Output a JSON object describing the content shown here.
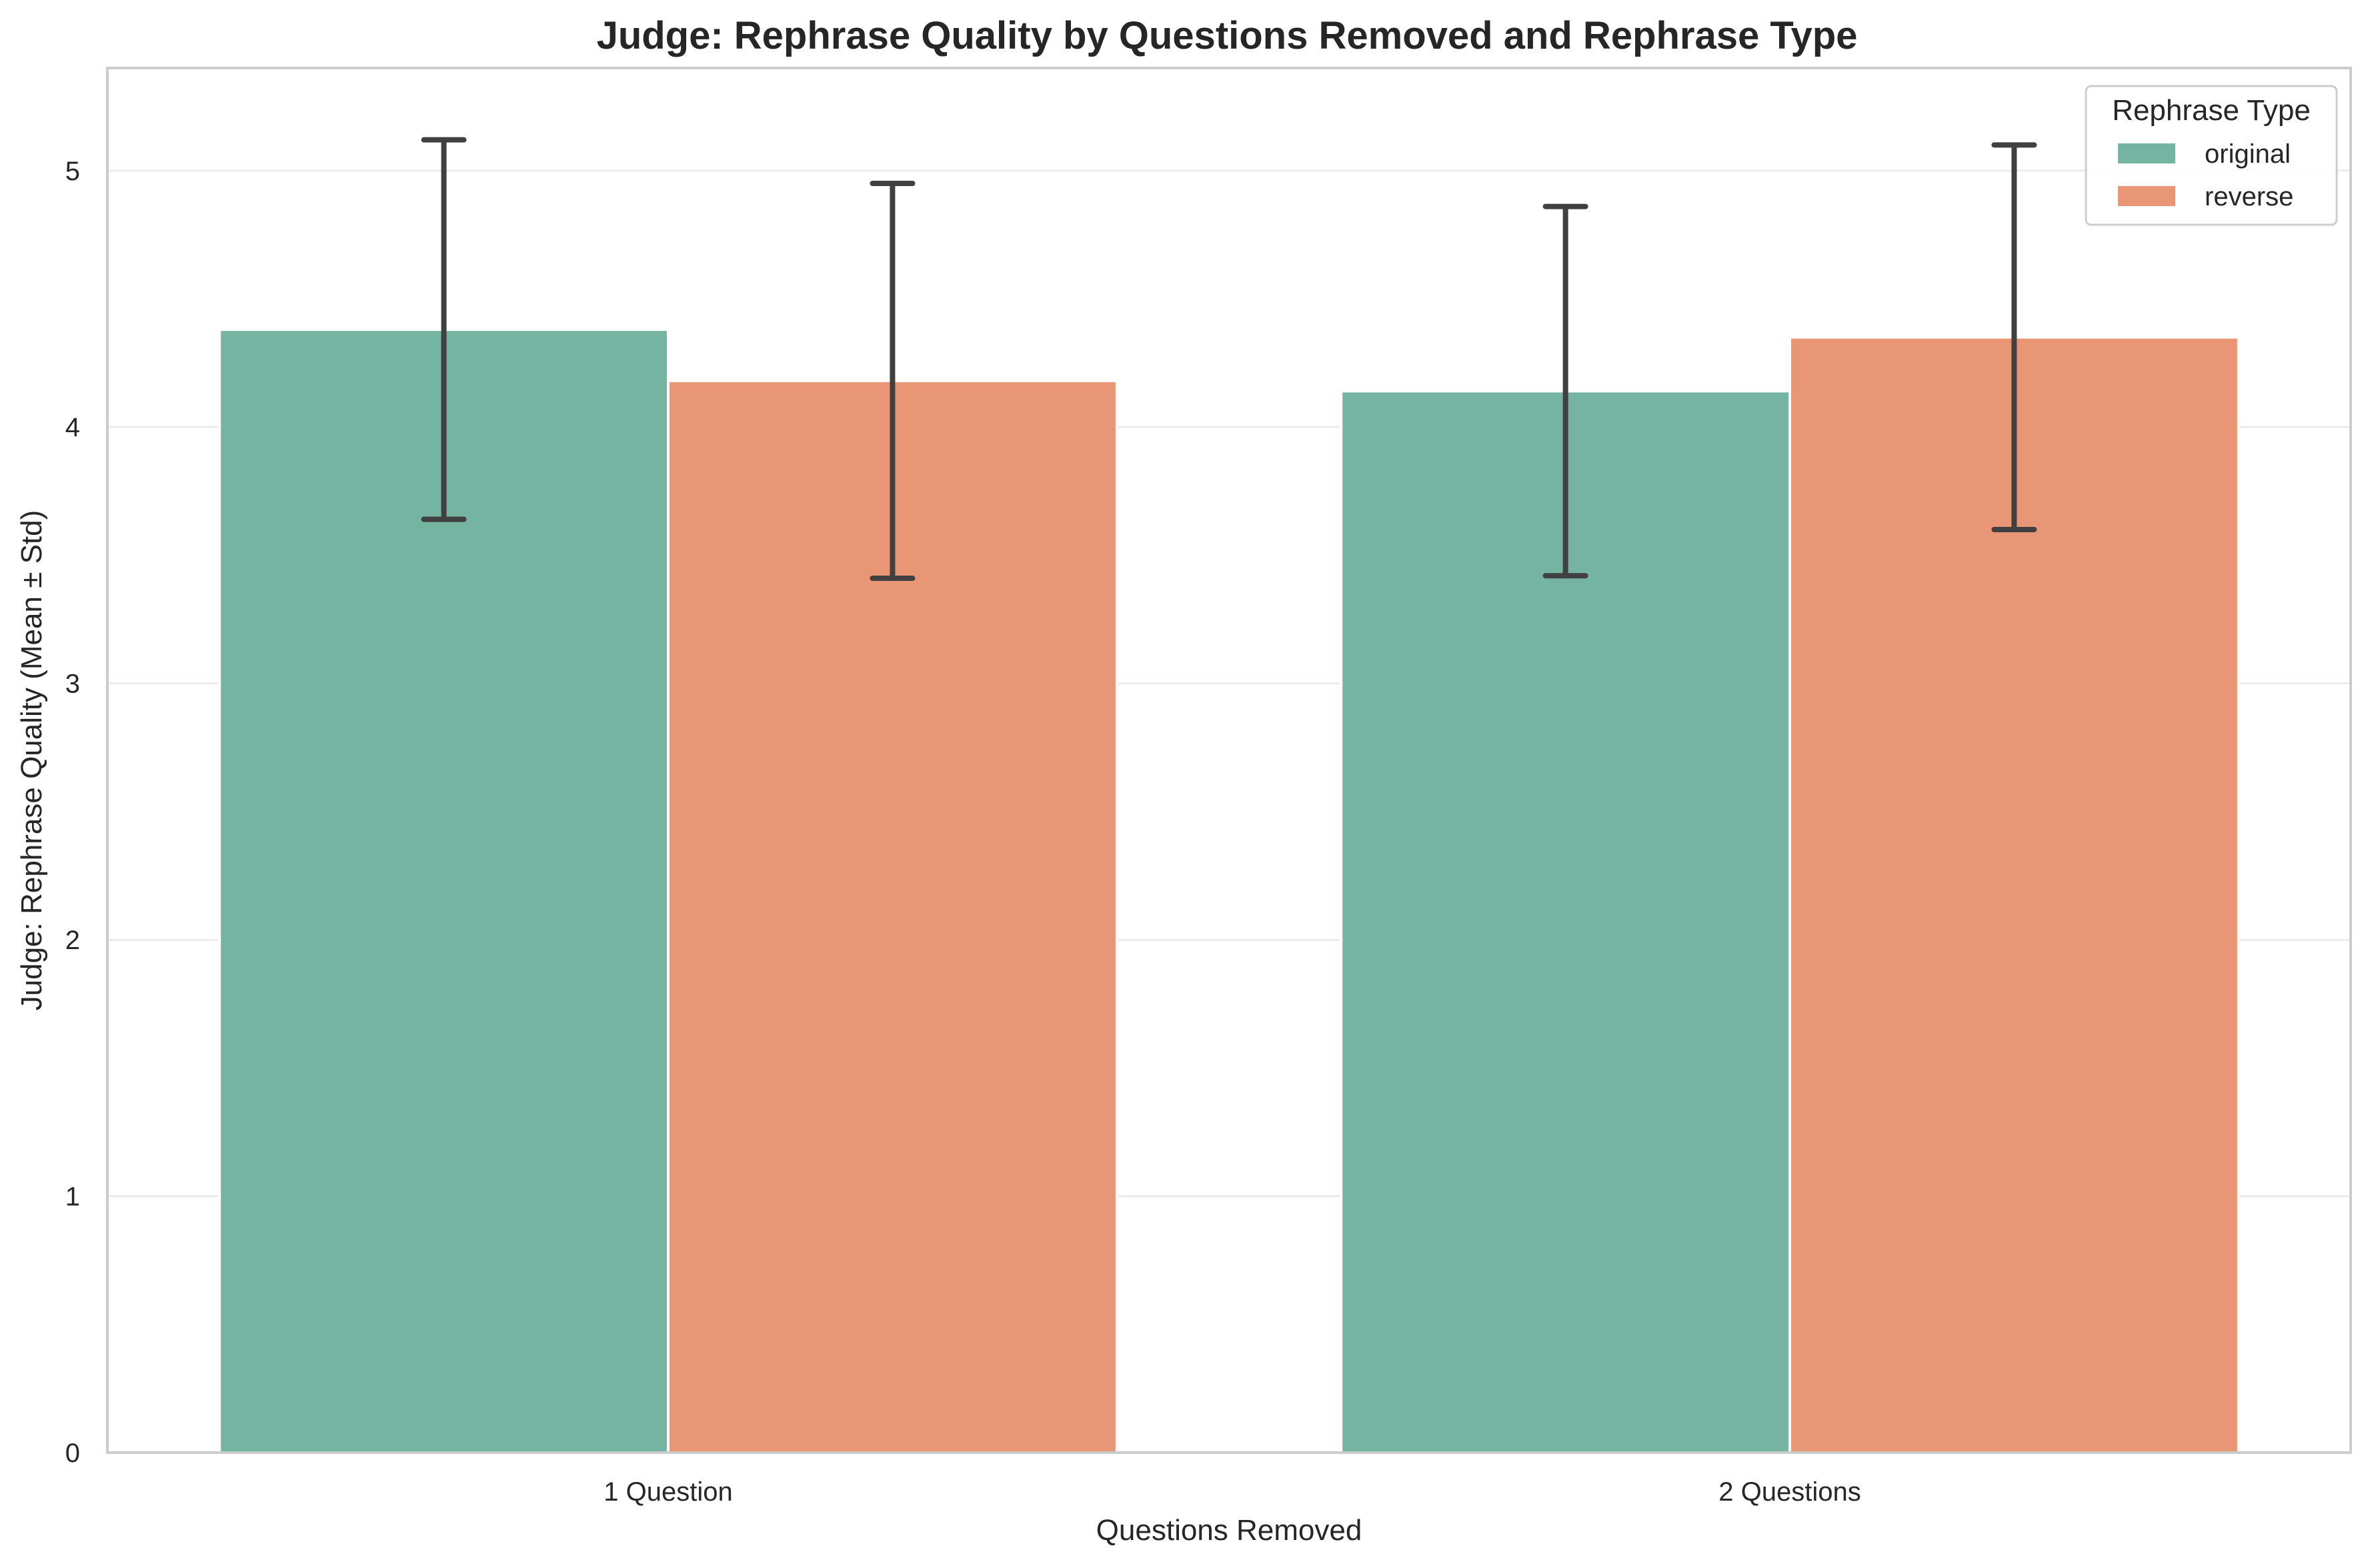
{
  "chart_data": {
    "type": "bar",
    "title": "Judge: Rephrase Quality by Questions Removed and Rephrase Type",
    "xlabel": "Questions Removed",
    "ylabel": "Judge: Rephrase Quality (Mean ± Std)",
    "categories": [
      "1 Question",
      "2 Questions"
    ],
    "series": [
      {
        "name": "original",
        "color": "#75b4a1",
        "values": [
          4.38,
          4.14
        ],
        "std": [
          0.74,
          0.72
        ]
      },
      {
        "name": "reverse",
        "color": "#e89675",
        "values": [
          4.18,
          4.35
        ],
        "std": [
          0.77,
          0.75
        ]
      }
    ],
    "ylim": [
      0,
      5.4
    ],
    "yticks": [
      0,
      1,
      2,
      3,
      4,
      5
    ],
    "legend": {
      "title": "Rephrase Type",
      "placement": "top-right"
    },
    "grid": true,
    "error_bar_color": "#404040"
  }
}
